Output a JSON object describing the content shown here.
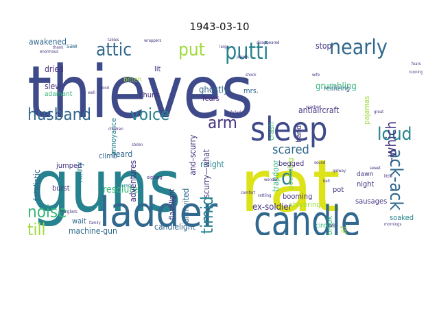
{
  "title": "1943-03-10",
  "palette": {
    "navy": "#3e4a89",
    "indigo": "#45327f",
    "blue": "#31688e",
    "teal": "#26828e",
    "green": "#35b779",
    "lime": "#9fda3a",
    "yellow": "#dde318",
    "darkpurple": "#482475"
  },
  "words": [
    {
      "text": "thieves",
      "color": "navy",
      "rot": 0
    },
    {
      "text": "guns",
      "color": "teal",
      "rot": 0
    },
    {
      "text": "rat",
      "color": "yellow",
      "rot": 0
    },
    {
      "text": "sleep",
      "color": "navy",
      "rot": 0
    },
    {
      "text": "ladder",
      "color": "blue",
      "rot": 0
    },
    {
      "text": "candle",
      "color": "blue",
      "rot": 0
    },
    {
      "text": "putti",
      "color": "teal",
      "rot": 0
    },
    {
      "text": "attic",
      "color": "blue",
      "rot": 0
    },
    {
      "text": "put",
      "color": "lime",
      "rot": 0
    },
    {
      "text": "nearly",
      "color": "blue",
      "rot": 0
    },
    {
      "text": "husband",
      "color": "blue",
      "rot": 0
    },
    {
      "text": "voice",
      "color": "teal",
      "rot": 0
    },
    {
      "text": "arm",
      "color": "indigo",
      "rot": 0
    },
    {
      "text": "loud",
      "color": "teal",
      "rot": 0
    },
    {
      "text": "noise",
      "color": "green",
      "rot": 0
    },
    {
      "text": "till",
      "color": "lime",
      "rot": 0
    },
    {
      "text": "d",
      "color": "teal",
      "rot": 0
    },
    {
      "text": "ack-ack",
      "color": "blue",
      "rot": 90
    },
    {
      "text": "fatalist",
      "color": "teal",
      "rot": 270
    },
    {
      "text": "–which",
      "color": "indigo",
      "rot": 270
    },
    {
      "text": "timid",
      "color": "teal",
      "rot": 270
    },
    {
      "text": "scared",
      "color": "blue",
      "rot": 0
    },
    {
      "text": "awakened",
      "color": "blue",
      "rot": 0
    },
    {
      "text": "dried",
      "color": "indigo",
      "rot": 0
    },
    {
      "text": "stop",
      "color": "indigo",
      "rot": 0
    },
    {
      "text": "grumbling",
      "color": "green",
      "rot": 0
    },
    {
      "text": "antiaircraft",
      "color": "indigo",
      "rot": 0
    },
    {
      "text": "ghostly",
      "color": "blue",
      "rot": 0
    },
    {
      "text": "slew",
      "color": "indigo",
      "rot": 0
    },
    {
      "text": "resolute",
      "color": "green",
      "rot": 0
    },
    {
      "text": "relight",
      "color": "teal",
      "rot": 0
    },
    {
      "text": "ex-soldier",
      "color": "indigo",
      "rot": 0
    },
    {
      "text": "machine-gun",
      "color": "blue",
      "rot": 0
    },
    {
      "text": "candlelight",
      "color": "blue",
      "rot": 0
    },
    {
      "text": "noises",
      "color": "green",
      "rot": 0
    },
    {
      "text": "mrs.",
      "color": "blue",
      "rot": 0
    },
    {
      "text": "fears",
      "color": "darkpurple",
      "rot": 0
    },
    {
      "text": "lit",
      "color": "indigo",
      "rot": 0
    },
    {
      "text": "bitten",
      "color": "lime",
      "rot": 0
    },
    {
      "text": "chunk",
      "color": "indigo",
      "rot": 0
    },
    {
      "text": "adamant",
      "color": "green",
      "rot": 0
    },
    {
      "text": "heard",
      "color": "blue",
      "rot": 0
    },
    {
      "text": "ninny",
      "color": "teal",
      "rot": 270
    },
    {
      "text": "jumped",
      "color": "indigo",
      "rot": 0
    },
    {
      "text": "adventures",
      "color": "indigo",
      "rot": 270
    },
    {
      "text": "flashlight",
      "color": "indigo",
      "rot": 270
    },
    {
      "text": "uninvited",
      "color": "blue",
      "rot": 270
    },
    {
      "text": "and–scurry",
      "color": "indigo",
      "rot": 270
    },
    {
      "text": "scurry—what",
      "color": "indigo",
      "rot": 270
    },
    {
      "text": "pounding",
      "color": "lime",
      "rot": 270
    },
    {
      "text": "trapdoor",
      "color": "green",
      "rot": 270
    },
    {
      "text": "beaverbrook",
      "color": "green",
      "rot": 270
    },
    {
      "text": "again…at",
      "color": "lime",
      "rot": 270
    },
    {
      "text": "shaken–petting",
      "color": "teal",
      "rot": 270
    },
    {
      "text": "begged",
      "color": "indigo",
      "rot": 0
    },
    {
      "text": "booming",
      "color": "indigo",
      "rot": 0
    },
    {
      "text": "shivering",
      "color": "lime",
      "rot": 0
    },
    {
      "text": "pot",
      "color": "indigo",
      "rot": 0
    },
    {
      "text": "dawn",
      "color": "indigo",
      "rot": 0
    },
    {
      "text": "night",
      "color": "indigo",
      "rot": 0
    },
    {
      "text": "sausages",
      "color": "indigo",
      "rot": 0
    },
    {
      "text": "soaked",
      "color": "teal",
      "rot": 0
    },
    {
      "text": "wait",
      "color": "blue",
      "rot": 0
    },
    {
      "text": "burst",
      "color": "indigo",
      "rot": 0
    },
    {
      "text": "fatalistic",
      "color": "blue",
      "rot": 270
    },
    {
      "text": "climb",
      "color": "blue",
      "rot": 0
    },
    {
      "text": "realizing",
      "color": "blue",
      "rot": 0
    },
    {
      "text": "circuit",
      "color": "green",
      "rot": 0
    },
    {
      "text": "hand",
      "color": "indigo",
      "rot": 270
    },
    {
      "text": "annoyance",
      "color": "teal",
      "rot": 270
    },
    {
      "text": "pajamas",
      "color": "lime",
      "rot": 270
    },
    {
      "text": "crash",
      "color": "green",
      "rot": 270
    },
    {
      "text": "saw",
      "color": "blue",
      "rot": 0
    },
    {
      "text": "burglars",
      "color": "indigo",
      "rot": 0
    },
    {
      "text": "scared",
      "color": "teal",
      "rot": 0
    },
    {
      "text": "sighing",
      "color": "indigo",
      "rot": 0
    },
    {
      "text": "failed",
      "color": "indigo",
      "rot": 0
    },
    {
      "text": "sweet",
      "color": "indigo",
      "rot": 0
    },
    {
      "text": "great",
      "color": "indigo",
      "rot": 0
    },
    {
      "text": "little",
      "color": "indigo",
      "rot": 0
    },
    {
      "text": "mornings",
      "color": "indigo",
      "rot": 0
    },
    {
      "text": "sound",
      "color": "indigo",
      "rot": 0
    },
    {
      "text": "galway",
      "color": "indigo",
      "rot": 0
    },
    {
      "text": "wonder",
      "color": "indigo",
      "rot": 0
    },
    {
      "text": "comfort",
      "color": "indigo",
      "rot": 0
    },
    {
      "text": "rattling",
      "color": "indigo",
      "rot": 0
    },
    {
      "text": "reached",
      "color": "indigo",
      "rot": 0
    },
    {
      "text": "safe",
      "color": "indigo",
      "rot": 0
    },
    {
      "text": "wife",
      "color": "indigo",
      "rot": 0
    },
    {
      "text": "running",
      "color": "indigo",
      "rot": 0
    },
    {
      "text": "bell",
      "color": "indigo",
      "rot": 0
    },
    {
      "text": "thank",
      "color": "indigo",
      "rot": 0
    },
    {
      "text": "shock",
      "color": "indigo",
      "rot": 0
    },
    {
      "text": "well",
      "color": "indigo",
      "rot": 0
    },
    {
      "text": "blood",
      "color": "indigo",
      "rot": 0
    },
    {
      "text": "family",
      "color": "indigo",
      "rot": 0
    },
    {
      "text": "disappeared",
      "color": "indigo",
      "rot": 0
    },
    {
      "text": "tables",
      "color": "indigo",
      "rot": 0
    },
    {
      "text": "planes",
      "color": "indigo",
      "rot": 0
    },
    {
      "text": "fears",
      "color": "indigo",
      "rot": 0
    },
    {
      "text": "large",
      "color": "indigo",
      "rot": 0
    },
    {
      "text": "hear",
      "color": "indigo",
      "rot": 0
    },
    {
      "text": "enormous",
      "color": "indigo",
      "rot": 0
    },
    {
      "text": "children",
      "color": "indigo",
      "rot": 0
    },
    {
      "text": "stolen",
      "color": "indigo",
      "rot": 0
    },
    {
      "text": "wrappers",
      "color": "indigo",
      "rot": 0
    }
  ]
}
